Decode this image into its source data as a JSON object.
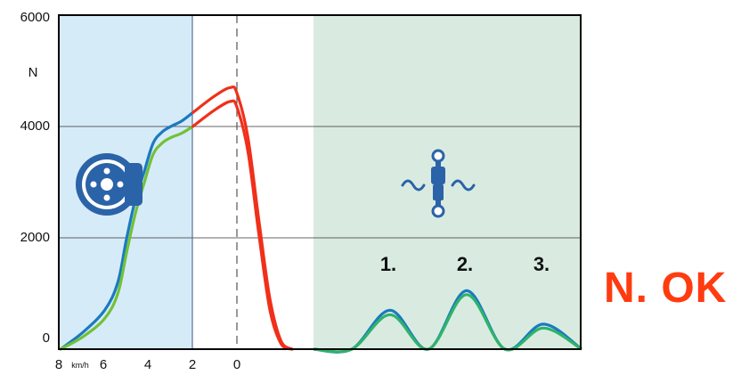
{
  "chart_data": {
    "type": "line",
    "ylabel": "N",
    "ylim": [
      0,
      6000
    ],
    "y_ticks": [
      {
        "value": 0,
        "label": "0"
      },
      {
        "value": 2000,
        "label": "2000"
      },
      {
        "value": 4000,
        "label": "4000"
      },
      {
        "value": 6000,
        "label": "6000"
      }
    ],
    "x_ticks": [
      {
        "label": "8",
        "unit": "km/h"
      },
      {
        "label": "6"
      },
      {
        "label": "4"
      },
      {
        "label": "2"
      },
      {
        "label": "0"
      }
    ],
    "grid": {
      "horizontal": true,
      "vertical": false
    },
    "zones": [
      {
        "id": "braking",
        "color": "#d6ebf8",
        "icon": "brake-disc-icon"
      },
      {
        "id": "suspension",
        "color": "#d9ebe0",
        "icon": "shock-absorber-icon"
      }
    ],
    "peak_labels": [
      "1.",
      "2.",
      "3."
    ],
    "series": [
      {
        "color": "#1a7ac0",
        "points": [
          [
            8,
            0
          ],
          [
            7,
            300
          ],
          [
            6,
            700
          ],
          [
            5.4,
            1200
          ],
          [
            5,
            2000
          ],
          [
            4.6,
            2700
          ],
          [
            4.2,
            3200
          ],
          [
            3.8,
            3700
          ],
          [
            3.4,
            3900
          ],
          [
            3,
            4000
          ],
          [
            2.5,
            4100
          ],
          [
            2,
            4250
          ],
          [
            1,
            4550
          ],
          [
            0.3,
            4700
          ],
          [
            0,
            4600
          ],
          [
            -0.5,
            3800
          ],
          [
            -1,
            2300
          ],
          [
            -1.5,
            900
          ],
          [
            -2,
            150
          ],
          [
            -2.5,
            0
          ]
        ]
      },
      {
        "color": "#72c137",
        "points": [
          [
            8,
            0
          ],
          [
            7,
            220
          ],
          [
            6,
            550
          ],
          [
            5.4,
            1000
          ],
          [
            5,
            1750
          ],
          [
            4.6,
            2450
          ],
          [
            4.2,
            3000
          ],
          [
            3.8,
            3500
          ],
          [
            3.4,
            3700
          ],
          [
            3,
            3800
          ],
          [
            2.5,
            3880
          ],
          [
            2,
            4000
          ],
          [
            1,
            4300
          ],
          [
            0.3,
            4450
          ],
          [
            0,
            4350
          ],
          [
            -0.5,
            3550
          ],
          [
            -1,
            2050
          ],
          [
            -1.5,
            700
          ],
          [
            -2,
            100
          ],
          [
            -2.5,
            0
          ]
        ]
      },
      {
        "color": "#1a7ac0",
        "points": [
          [
            0,
            0
          ],
          [
            1,
            0
          ],
          [
            2,
            700
          ],
          [
            3,
            0
          ],
          [
            4,
            1050
          ],
          [
            5,
            0
          ],
          [
            6,
            450
          ],
          [
            7,
            0
          ]
        ]
      },
      {
        "color": "#2fb36a",
        "points": [
          [
            0,
            0
          ],
          [
            1,
            0
          ],
          [
            2,
            620
          ],
          [
            3,
            0
          ],
          [
            4,
            980
          ],
          [
            5,
            0
          ],
          [
            6,
            380
          ],
          [
            7,
            0
          ]
        ]
      }
    ],
    "status_text": "N. OK"
  }
}
